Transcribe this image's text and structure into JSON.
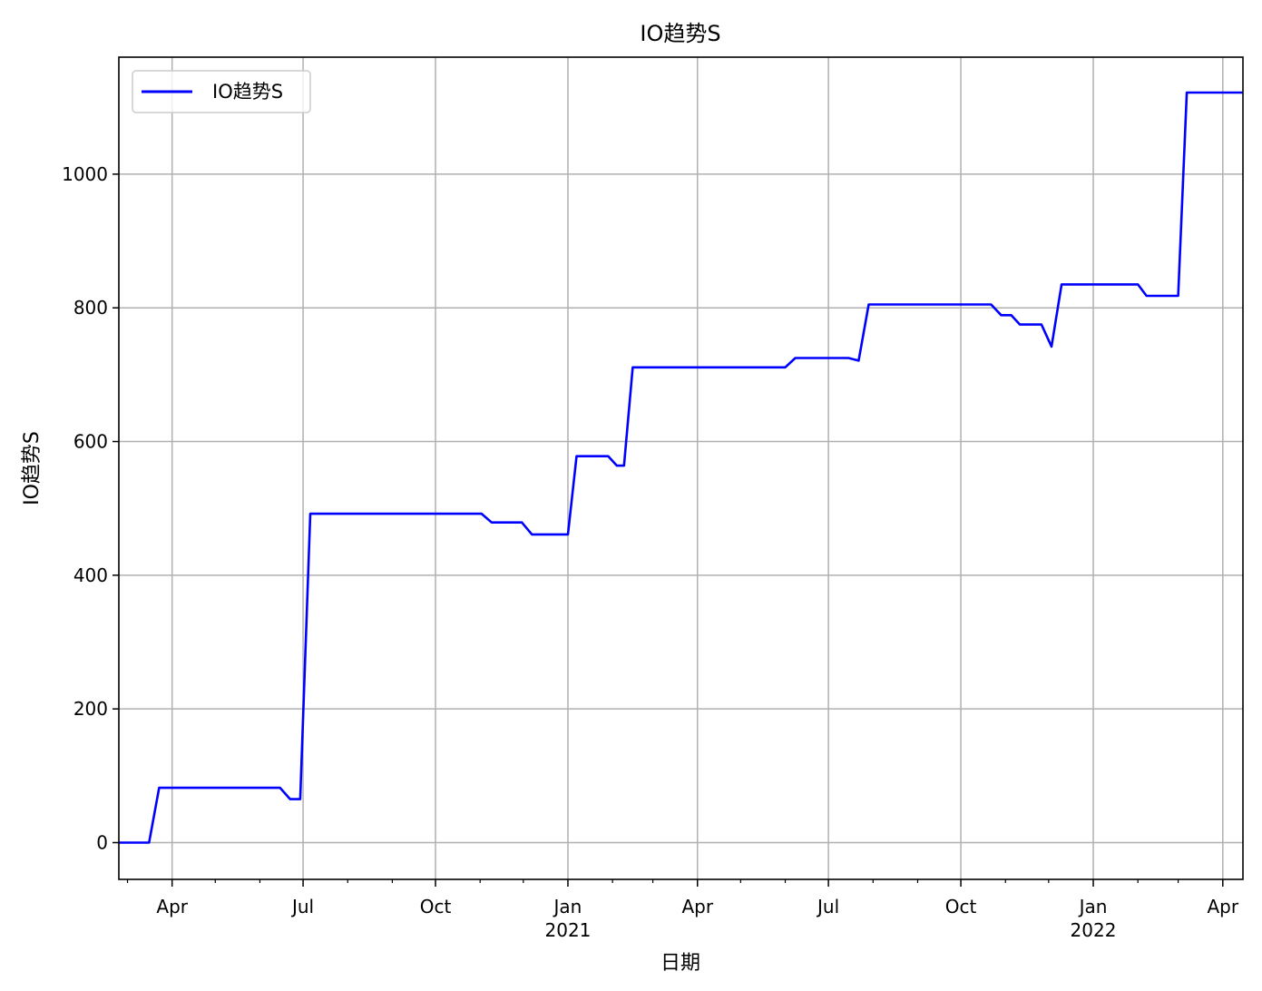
{
  "chart_data": {
    "type": "line",
    "title": "IO趋势S",
    "xlabel": "日期",
    "ylabel": "IO趋势S",
    "grid": true,
    "legend": {
      "position": "top-left",
      "entries": [
        "IO趋势S"
      ]
    },
    "xlim": [
      "2020-02-24",
      "2022-04-15"
    ],
    "ylim": [
      -55,
      1175
    ],
    "y_ticks": [
      0,
      200,
      400,
      600,
      800,
      1000
    ],
    "y_tick_labels": [
      "0",
      "200",
      "400",
      "600",
      "800",
      "1000"
    ],
    "x_major_ticks": [
      {
        "date": "2020-04-01",
        "label": "Apr"
      },
      {
        "date": "2020-07-01",
        "label": "Jul"
      },
      {
        "date": "2020-10-01",
        "label": "Oct"
      },
      {
        "date": "2021-01-01",
        "label": "Jan",
        "year": "2021"
      },
      {
        "date": "2021-04-01",
        "label": "Apr"
      },
      {
        "date": "2021-07-01",
        "label": "Jul"
      },
      {
        "date": "2021-10-01",
        "label": "Oct"
      },
      {
        "date": "2022-01-01",
        "label": "Jan",
        "year": "2022"
      },
      {
        "date": "2022-04-01",
        "label": "Apr"
      }
    ],
    "x_minor_ticks": [
      "2020-03-01",
      "2020-05-01",
      "2020-06-01",
      "2020-08-01",
      "2020-09-01",
      "2020-11-01",
      "2020-12-01",
      "2021-02-01",
      "2021-03-01",
      "2021-05-01",
      "2021-06-01",
      "2021-08-01",
      "2021-09-01",
      "2021-11-01",
      "2021-12-01",
      "2022-02-01",
      "2022-03-01"
    ],
    "series": [
      {
        "name": "IO趋势S",
        "color": "#0000ff",
        "x": [
          "2020-02-24",
          "2020-03-16",
          "2020-03-23",
          "2020-06-15",
          "2020-06-22",
          "2020-06-29",
          "2020-07-06",
          "2020-11-02",
          "2020-11-09",
          "2020-11-30",
          "2020-12-07",
          "2021-01-01",
          "2021-01-07",
          "2021-01-29",
          "2021-02-04",
          "2021-02-09",
          "2021-02-15",
          "2021-06-01",
          "2021-06-08",
          "2021-07-15",
          "2021-07-22",
          "2021-07-29",
          "2021-10-22",
          "2021-10-29",
          "2021-11-05",
          "2021-11-11",
          "2021-11-26",
          "2021-12-03",
          "2021-12-10",
          "2022-02-01",
          "2022-02-07",
          "2022-03-01",
          "2022-03-07",
          "2022-04-15"
        ],
        "y": [
          0,
          0,
          82,
          82,
          65,
          65,
          492,
          492,
          479,
          479,
          461,
          461,
          578,
          578,
          564,
          564,
          711,
          711,
          725,
          725,
          721,
          805,
          805,
          789,
          789,
          775,
          775,
          742,
          835,
          835,
          818,
          818,
          1122,
          1122
        ]
      }
    ]
  }
}
